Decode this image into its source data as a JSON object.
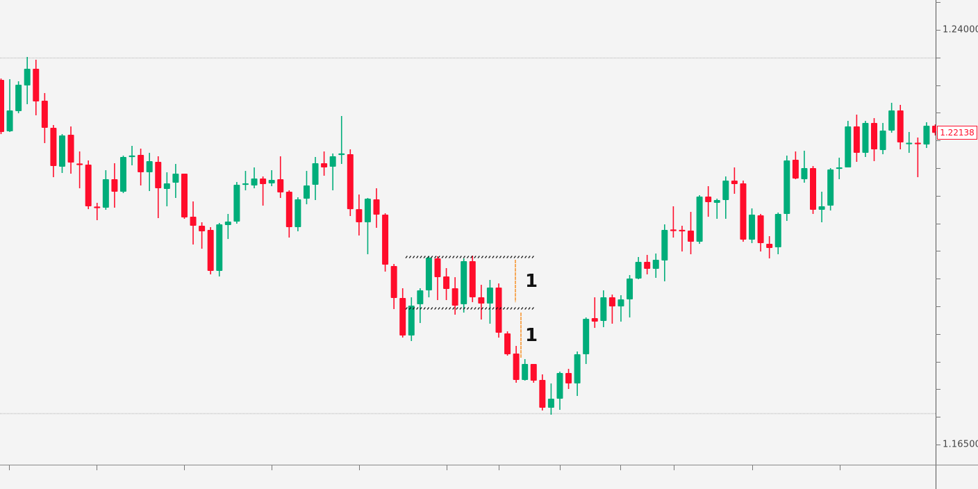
{
  "chart": {
    "price_axis": {
      "labels": [
        {
          "text": "1.24000",
          "value": 1.24
        },
        {
          "text": "1.16500",
          "value": 1.165
        }
      ],
      "tick_step": 0.005
    },
    "current_price": {
      "text": "1.22138",
      "value": 1.22138,
      "color": "#ff0d2b"
    },
    "annotations": {
      "range_box_top_price": 1.19892,
      "range_box_bottom_price": 1.18962,
      "count_labels": [
        "1",
        "1"
      ]
    },
    "colors": {
      "bullish": "#00ad7a",
      "bearish": "#ff0d2b",
      "background": "#f4f4f4",
      "measure_line": "#f7a24a"
    }
  },
  "chart_data": {
    "type": "candlestick",
    "title": "",
    "xlabel": "",
    "ylabel": "",
    "ylim": [
      1.1612,
      1.2454
    ],
    "y_ticks": [
      1.24,
      1.165
    ],
    "grid": false,
    "horizontal_levels": [
      1.235,
      1.1706
    ],
    "range_box": {
      "top": 1.19892,
      "bottom": 1.18962,
      "from_index": 47,
      "to_index": 61
    },
    "measure_moves": [
      {
        "from": 1.19842,
        "to": 1.19075,
        "label": "1"
      },
      {
        "from": 1.18887,
        "to": 1.18058,
        "label": "1"
      }
    ],
    "last_price": 1.22138,
    "candles": [
      [
        1.23095,
        1.2312,
        1.22115,
        1.22153
      ],
      [
        1.22166,
        1.23108,
        1.22153,
        1.22543
      ],
      [
        1.2253,
        1.2307,
        1.22492,
        1.23007
      ],
      [
        1.22995,
        1.2351,
        1.22656,
        1.23296
      ],
      [
        1.23296,
        1.2346,
        1.22455,
        1.22706
      ],
      [
        1.22718,
        1.22857,
        1.21952,
        1.22228
      ],
      [
        1.22228,
        1.22279,
        1.21336,
        1.21537
      ],
      [
        1.21525,
        1.22115,
        1.21412,
        1.2209
      ],
      [
        1.22103,
        1.22253,
        1.21399,
        1.216
      ],
      [
        1.21575,
        1.21801,
        1.21135,
        1.21563
      ],
      [
        1.21563,
        1.21638,
        1.20758,
        1.20809
      ],
      [
        1.20796,
        1.20872,
        1.20558,
        1.20784
      ],
      [
        1.20784,
        1.21462,
        1.20746,
        1.21299
      ],
      [
        1.21299,
        1.21588,
        1.20784,
        1.21073
      ],
      [
        1.21073,
        1.21726,
        1.21048,
        1.21701
      ],
      [
        1.21701,
        1.21902,
        1.2155,
        1.21726
      ],
      [
        1.21739,
        1.21852,
        1.21186,
        1.21424
      ],
      [
        1.21424,
        1.21776,
        1.21085,
        1.21626
      ],
      [
        1.21613,
        1.21713,
        1.20595,
        1.21135
      ],
      [
        1.21123,
        1.21424,
        1.20809,
        1.21223
      ],
      [
        1.21236,
        1.21575,
        1.2096,
        1.21399
      ],
      [
        1.21399,
        1.21399,
        1.20583,
        1.20608
      ],
      [
        1.2062,
        1.20897,
        1.20118,
        1.20457
      ],
      [
        1.20457,
        1.2052,
        1.20042,
        1.20357
      ],
      [
        1.20382,
        1.20432,
        1.19578,
        1.1964
      ],
      [
        1.1964,
        1.20507,
        1.1954,
        1.20482
      ],
      [
        1.2047,
        1.20671,
        1.20218,
        1.20532
      ],
      [
        1.20532,
        1.21248,
        1.20495,
        1.21198
      ],
      [
        1.21198,
        1.21449,
        1.21098,
        1.21223
      ],
      [
        1.21186,
        1.21512,
        1.21135,
        1.21311
      ],
      [
        1.21311,
        1.21349,
        1.20821,
        1.21211
      ],
      [
        1.21223,
        1.21462,
        1.21173,
        1.21286
      ],
      [
        1.21299,
        1.21713,
        1.2096,
        1.2106
      ],
      [
        1.21073,
        1.21098,
        1.20244,
        1.20432
      ],
      [
        1.20432,
        1.20972,
        1.20357,
        1.20934
      ],
      [
        1.20947,
        1.21449,
        1.20846,
        1.21186
      ],
      [
        1.21198,
        1.21701,
        1.20922,
        1.21588
      ],
      [
        1.21588,
        1.21801,
        1.21362,
        1.21512
      ],
      [
        1.21525,
        1.21764,
        1.21098,
        1.21713
      ],
      [
        1.21739,
        1.22442,
        1.21575,
        1.21764
      ],
      [
        1.21751,
        1.21839,
        1.20633,
        1.20758
      ],
      [
        1.20758,
        1.21022,
        1.20281,
        1.2052
      ],
      [
        1.2052,
        1.2096,
        1.19942,
        1.20947
      ],
      [
        1.20934,
        1.21135,
        1.2042,
        1.20658
      ],
      [
        1.20658,
        1.20683,
        1.19628,
        1.19754
      ],
      [
        1.19729,
        1.19766,
        1.1895,
        1.19151
      ],
      [
        1.19151,
        1.19327,
        1.18434,
        1.18472
      ],
      [
        1.18472,
        1.19163,
        1.18372,
        1.19012
      ],
      [
        1.19037,
        1.19327,
        1.18698,
        1.19289
      ],
      [
        1.19289,
        1.19905,
        1.19163,
        1.19879
      ],
      [
        1.19867,
        1.19905,
        1.19113,
        1.19527
      ],
      [
        1.1954,
        1.19691,
        1.19113,
        1.19314
      ],
      [
        1.19327,
        1.19527,
        1.18849,
        1.19012
      ],
      [
        1.19037,
        1.19867,
        1.18887,
        1.19816
      ],
      [
        1.19816,
        1.19917,
        1.19075,
        1.19163
      ],
      [
        1.19163,
        1.19389,
        1.18761,
        1.1905
      ],
      [
        1.1905,
        1.19477,
        1.18686,
        1.19339
      ],
      [
        1.19339,
        1.19414,
        1.18434,
        1.18522
      ],
      [
        1.1851,
        1.18547,
        1.18108,
        1.18133
      ],
      [
        1.18145,
        1.18284,
        1.17618,
        1.17668
      ],
      [
        1.17668,
        1.18045,
        1.17656,
        1.17957
      ],
      [
        1.17957,
        1.17957,
        1.17618,
        1.17656
      ],
      [
        1.17668,
        1.17769,
        1.17116,
        1.17166
      ],
      [
        1.17166,
        1.17605,
        1.1704,
        1.17329
      ],
      [
        1.17329,
        1.17819,
        1.17128,
        1.17794
      ],
      [
        1.17794,
        1.17869,
        1.17505,
        1.17605
      ],
      [
        1.17605,
        1.18183,
        1.17379,
        1.18133
      ],
      [
        1.18133,
        1.18799,
        1.17957,
        1.18774
      ],
      [
        1.18786,
        1.19163,
        1.1861,
        1.18723
      ],
      [
        1.18736,
        1.19289,
        1.18623,
        1.19163
      ],
      [
        1.19163,
        1.19213,
        1.18686,
        1.18999
      ],
      [
        1.18999,
        1.19201,
        1.18723,
        1.19125
      ],
      [
        1.19125,
        1.19565,
        1.18799,
        1.19502
      ],
      [
        1.19502,
        1.19892,
        1.1949,
        1.19804
      ],
      [
        1.19804,
        1.1993,
        1.19578,
        1.19678
      ],
      [
        1.19678,
        1.19955,
        1.19515,
        1.19842
      ],
      [
        1.19829,
        1.20482,
        1.19452,
        1.20382
      ],
      [
        1.20382,
        1.20809,
        1.20244,
        1.20369
      ],
      [
        1.20382,
        1.20457,
        1.19992,
        1.20357
      ],
      [
        1.20369,
        1.20708,
        1.19942,
        1.20168
      ],
      [
        1.20168,
        1.2101,
        1.2013,
        1.20985
      ],
      [
        1.20985,
        1.21173,
        1.2062,
        1.20884
      ],
      [
        1.20872,
        1.20947,
        1.20583,
        1.20922
      ],
      [
        1.20922,
        1.21349,
        1.20583,
        1.21274
      ],
      [
        1.21274,
        1.21512,
        1.21035,
        1.21211
      ],
      [
        1.21223,
        1.21274,
        1.20168,
        1.20206
      ],
      [
        1.20206,
        1.20771,
        1.20143,
        1.20658
      ],
      [
        1.20645,
        1.20671,
        1.19992,
        1.20143
      ],
      [
        1.2013,
        1.20269,
        1.19867,
        1.20055
      ],
      [
        1.20068,
        1.20696,
        1.19942,
        1.20671
      ],
      [
        1.20671,
        1.21726,
        1.20545,
        1.21638
      ],
      [
        1.21651,
        1.21801,
        1.21299,
        1.21311
      ],
      [
        1.21299,
        1.21814,
        1.21236,
        1.215
      ],
      [
        1.215,
        1.21537,
        1.20671,
        1.20746
      ],
      [
        1.20746,
        1.21073,
        1.2052,
        1.20809
      ],
      [
        1.20821,
        1.215,
        1.20733,
        1.21475
      ],
      [
        1.21487,
        1.21688,
        1.21299,
        1.21512
      ],
      [
        1.21512,
        1.22354,
        1.21512,
        1.22253
      ],
      [
        1.22253,
        1.22467,
        1.21613,
        1.21776
      ],
      [
        1.21776,
        1.22354,
        1.21701,
        1.22316
      ],
      [
        1.22316,
        1.22404,
        1.21626,
        1.21839
      ],
      [
        1.21826,
        1.22316,
        1.21751,
        1.22178
      ],
      [
        1.22178,
        1.22681,
        1.2214,
        1.22543
      ],
      [
        1.22543,
        1.22643,
        1.21839,
        1.21965
      ],
      [
        1.21939,
        1.22153,
        1.21776,
        1.21952
      ],
      [
        1.21952,
        1.22053,
        1.21336,
        1.21939
      ],
      [
        1.21927,
        1.22329,
        1.21864,
        1.22266
      ],
      [
        1.22266,
        1.22291,
        1.2209,
        1.22138
      ]
    ],
    "candle_format": [
      "open",
      "high",
      "low",
      "close"
    ]
  }
}
